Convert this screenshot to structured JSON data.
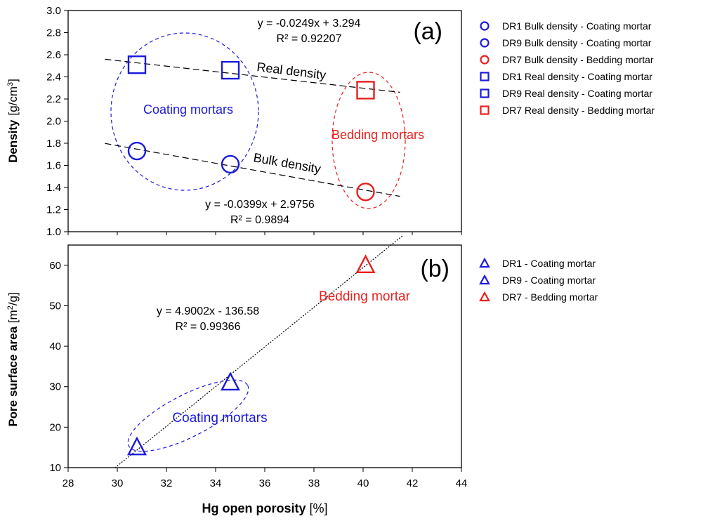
{
  "colors": {
    "blue": "#1a1adb",
    "red": "#e8201c",
    "axis": "#000000",
    "grid_frame": "#000000"
  },
  "x_axis": {
    "label_bold": "Hg open porosity",
    "label_unit": " [%]",
    "ticks": [
      "28",
      "30",
      "32",
      "34",
      "36",
      "38",
      "40",
      "42",
      "44"
    ],
    "range": [
      28,
      44
    ]
  },
  "chart_data": [
    {
      "type": "scatter",
      "panel_label": "(a)",
      "ylabel_bold": "Density",
      "ylabel_unit": "[g/cm",
      "ylabel_sup": "3",
      "ylabel_close": "]",
      "ylim": [
        1.0,
        3.0
      ],
      "yticks": [
        "1.0",
        "1.2",
        "1.4",
        "1.6",
        "1.8",
        "2.0",
        "2.2",
        "2.4",
        "2.6",
        "2.8",
        "3.0"
      ],
      "series": [
        {
          "name": "DR1 Bulk density - Coating mortar",
          "marker": "circle",
          "color": "blue",
          "x": 30.8,
          "y": 1.73
        },
        {
          "name": "DR9 Bulk density - Coating mortar",
          "marker": "circle",
          "color": "blue",
          "x": 34.6,
          "y": 1.61
        },
        {
          "name": "DR7 Bulk density - Bedding mortar",
          "marker": "circle",
          "color": "red",
          "x": 40.1,
          "y": 1.36
        },
        {
          "name": "DR1 Real density - Coating mortar",
          "marker": "square",
          "color": "blue",
          "x": 30.8,
          "y": 2.51
        },
        {
          "name": "DR9 Real density - Coating mortar",
          "marker": "square",
          "color": "blue",
          "x": 34.6,
          "y": 2.46
        },
        {
          "name": "DR7 Real density - Bedding mortar",
          "marker": "square",
          "color": "red",
          "x": 40.1,
          "y": 2.28
        }
      ],
      "trendlines": [
        {
          "label": "Real density",
          "slope": -0.0249,
          "intercept": 3.294,
          "x_range": [
            29.5,
            41.5
          ],
          "equation": "y = -0.0249x + 3.294",
          "r2": "R² = 0.92207"
        },
        {
          "label": "Bulk density",
          "slope": -0.0399,
          "intercept": 2.9756,
          "x_range": [
            29.5,
            41.5
          ],
          "equation": "y = -0.0399x + 2.9756",
          "r2": "R² = 0.9894"
        }
      ],
      "annotations": {
        "group_blue": "Coating mortars",
        "group_red": "Bedding mortars"
      }
    },
    {
      "type": "scatter",
      "panel_label": "(b)",
      "ylabel_bold": "Pore surface area",
      "ylabel_unit": " [m",
      "ylabel_sup": "2",
      "ylabel_close": "/g]",
      "ylim": [
        10,
        65
      ],
      "yticks": [
        "10",
        "20",
        "30",
        "40",
        "50",
        "60"
      ],
      "series": [
        {
          "name": "DR1 - Coating mortar",
          "marker": "triangle",
          "color": "blue",
          "x": 30.8,
          "y": 15
        },
        {
          "name": "DR9 - Coating mortar",
          "marker": "triangle",
          "color": "blue",
          "x": 34.6,
          "y": 31
        },
        {
          "name": "DR7 - Bedding mortar",
          "marker": "triangle",
          "color": "red",
          "x": 40.1,
          "y": 60
        }
      ],
      "trendlines": [
        {
          "label": "",
          "slope": 4.9002,
          "intercept": -136.58,
          "x_range": [
            29.9,
            41.6
          ],
          "equation": "y = 4.9002x - 136.58",
          "r2": "R² = 0.99366"
        }
      ],
      "annotations": {
        "group_blue": "Coating mortars",
        "group_red": "Bedding mortar"
      }
    }
  ]
}
